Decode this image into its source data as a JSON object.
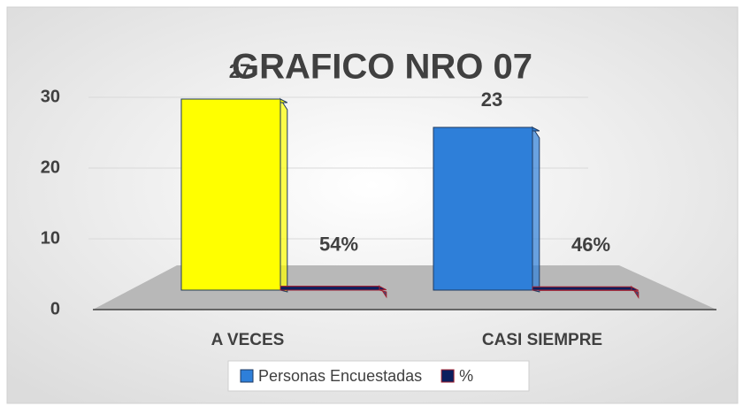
{
  "chart_data": {
    "type": "bar3d",
    "title": "GRAFICO NRO 07",
    "categories": [
      "A VECES",
      "CASI SIEMPRE"
    ],
    "series": [
      {
        "name": "Personas Encuestadas",
        "color": "#2e7fd9",
        "point_colors": [
          "#ffff00",
          "#2e7fd9"
        ],
        "values": [
          27,
          23
        ]
      },
      {
        "name": "%",
        "color": "#0b1f5e",
        "values": [
          0.54,
          0.46
        ],
        "value_labels": [
          "54%",
          "46%"
        ]
      }
    ],
    "ylim": [
      0,
      30
    ],
    "yticks": [
      0,
      10,
      20,
      30
    ],
    "grid": true,
    "legend": "bottom"
  }
}
